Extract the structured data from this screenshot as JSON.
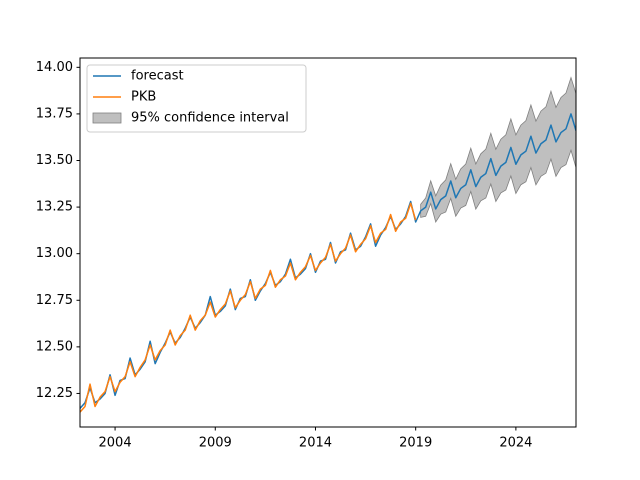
{
  "chart_data": {
    "type": "line",
    "x": [
      2002.25,
      2002.5,
      2002.75,
      2003,
      2003.25,
      2003.5,
      2003.75,
      2004,
      2004.25,
      2004.5,
      2004.75,
      2005,
      2005.25,
      2005.5,
      2005.75,
      2006,
      2006.25,
      2006.5,
      2006.75,
      2007,
      2007.25,
      2007.5,
      2007.75,
      2008,
      2008.25,
      2008.5,
      2008.75,
      2009,
      2009.25,
      2009.5,
      2009.75,
      2010,
      2010.25,
      2010.5,
      2010.75,
      2011,
      2011.25,
      2011.5,
      2011.75,
      2012,
      2012.25,
      2012.5,
      2012.75,
      2013,
      2013.25,
      2013.5,
      2013.75,
      2014,
      2014.25,
      2014.5,
      2014.75,
      2015,
      2015.25,
      2015.5,
      2015.75,
      2016,
      2016.25,
      2016.5,
      2016.75,
      2017,
      2017.25,
      2017.5,
      2017.75,
      2018,
      2018.25,
      2018.5,
      2018.75,
      2019,
      2019.25,
      2019.5,
      2019.75,
      2020,
      2020.25,
      2020.5,
      2020.75,
      2021,
      2021.25,
      2021.5,
      2021.75,
      2022,
      2022.25,
      2022.5,
      2022.75,
      2023,
      2023.25,
      2023.5,
      2023.75,
      2024,
      2024.25,
      2024.5,
      2024.75,
      2025,
      2025.25,
      2025.5,
      2025.75,
      2026,
      2026.25,
      2026.5,
      2026.75,
      2027
    ],
    "xlim": [
      2002.25,
      2027
    ],
    "xticks": [
      2004,
      2009,
      2014,
      2019,
      2024
    ],
    "ylim": [
      12.07,
      14.05
    ],
    "yticks": [
      12.25,
      {
        "value": 12.5,
        "label": "12.50"
      },
      12.75,
      {
        "value": 13,
        "label": "13.00"
      },
      13.25,
      {
        "value": 13.5,
        "label": "13.50"
      },
      13.75,
      {
        "value": 14,
        "label": "14.00"
      }
    ],
    "legend": "upper left",
    "series": [
      {
        "name": "forecast",
        "color": "#1f77b4",
        "values": [
          12.17,
          12.2,
          12.28,
          12.2,
          12.22,
          12.25,
          12.35,
          12.24,
          12.32,
          12.33,
          12.44,
          12.35,
          12.38,
          12.42,
          12.53,
          12.41,
          12.47,
          12.52,
          12.58,
          12.52,
          12.55,
          12.6,
          12.66,
          12.6,
          12.63,
          12.67,
          12.77,
          12.67,
          12.69,
          12.72,
          12.81,
          12.7,
          12.76,
          12.77,
          12.86,
          12.75,
          12.8,
          12.84,
          12.9,
          12.83,
          12.85,
          12.89,
          12.97,
          12.87,
          12.89,
          12.92,
          13.0,
          12.9,
          12.96,
          12.97,
          13.06,
          12.95,
          13.01,
          13.02,
          13.11,
          13.02,
          13.04,
          13.09,
          13.16,
          13.04,
          13.1,
          13.14,
          13.2,
          13.13,
          13.16,
          13.2,
          13.28,
          13.17,
          13.23,
          13.25,
          13.33,
          13.24,
          13.29,
          13.31,
          13.39,
          13.3,
          13.35,
          13.37,
          13.45,
          13.36,
          13.41,
          13.43,
          13.51,
          13.42,
          13.47,
          13.49,
          13.57,
          13.48,
          13.53,
          13.55,
          13.63,
          13.54,
          13.59,
          13.61,
          13.69,
          13.6,
          13.65,
          13.67,
          13.75,
          13.66
        ]
      },
      {
        "name": "PKB",
        "color": "#ff7f0e",
        "values": [
          12.15,
          12.18,
          12.3,
          12.18,
          12.23,
          12.26,
          12.34,
          12.26,
          12.31,
          12.34,
          12.42,
          12.34,
          12.39,
          12.43,
          12.51,
          12.43,
          12.48,
          12.51,
          12.59,
          12.51,
          12.56,
          12.59,
          12.67,
          12.59,
          12.64,
          12.67,
          12.74,
          12.66,
          12.7,
          12.73,
          12.8,
          12.71,
          12.75,
          12.78,
          12.85,
          12.76,
          12.81,
          12.83,
          12.91,
          12.82,
          12.86,
          12.88,
          12.95,
          12.86,
          12.9,
          12.93,
          12.99,
          12.91,
          12.95,
          12.98,
          13.05,
          12.96,
          13.0,
          13.03,
          13.1,
          13.01,
          13.05,
          13.08,
          13.15,
          13.06,
          13.11,
          13.13,
          13.21,
          13.12,
          13.17,
          13.19,
          13.27,
          13.18,
          null,
          null,
          null,
          null,
          null,
          null,
          null,
          null,
          null,
          null,
          null,
          null,
          null,
          null,
          null,
          null,
          null,
          null,
          null,
          null,
          null,
          null,
          null,
          null,
          null,
          null,
          null,
          null,
          null,
          null,
          null,
          null
        ]
      }
    ],
    "band": {
      "name": "95% confidence interval",
      "color": "#bfbfbf",
      "edge": "#808080",
      "lower": [
        null,
        null,
        null,
        null,
        null,
        null,
        null,
        null,
        null,
        null,
        null,
        null,
        null,
        null,
        null,
        null,
        null,
        null,
        null,
        null,
        null,
        null,
        null,
        null,
        null,
        null,
        null,
        null,
        null,
        null,
        null,
        null,
        null,
        null,
        null,
        null,
        null,
        null,
        null,
        null,
        null,
        null,
        null,
        null,
        null,
        null,
        null,
        null,
        null,
        null,
        null,
        null,
        null,
        null,
        null,
        null,
        null,
        null,
        null,
        null,
        null,
        null,
        null,
        null,
        null,
        null,
        null,
        null,
        13.195,
        13.201,
        13.269,
        13.17,
        13.212,
        13.224,
        13.297,
        13.201,
        13.245,
        13.259,
        13.334,
        13.239,
        13.284,
        13.299,
        13.374,
        13.28,
        13.326,
        13.342,
        13.417,
        13.323,
        13.37,
        13.386,
        13.462,
        13.369,
        13.415,
        13.432,
        13.508,
        13.415,
        13.462,
        13.478,
        13.555,
        13.462
      ],
      "upper": [
        null,
        null,
        null,
        null,
        null,
        null,
        null,
        null,
        null,
        null,
        null,
        null,
        null,
        null,
        null,
        null,
        null,
        null,
        null,
        null,
        null,
        null,
        null,
        null,
        null,
        null,
        null,
        null,
        null,
        null,
        null,
        null,
        null,
        null,
        null,
        null,
        null,
        null,
        null,
        null,
        null,
        null,
        null,
        null,
        null,
        null,
        null,
        null,
        null,
        null,
        null,
        null,
        null,
        null,
        null,
        null,
        null,
        null,
        null,
        null,
        null,
        null,
        null,
        null,
        null,
        null,
        null,
        null,
        13.265,
        13.299,
        13.391,
        13.31,
        13.368,
        13.396,
        13.483,
        13.399,
        13.455,
        13.481,
        13.566,
        13.481,
        13.536,
        13.561,
        13.646,
        13.56,
        13.614,
        13.638,
        13.723,
        13.637,
        13.69,
        13.714,
        13.798,
        13.711,
        13.765,
        13.788,
        13.872,
        13.785,
        13.838,
        13.862,
        13.945,
        13.858
      ]
    }
  }
}
